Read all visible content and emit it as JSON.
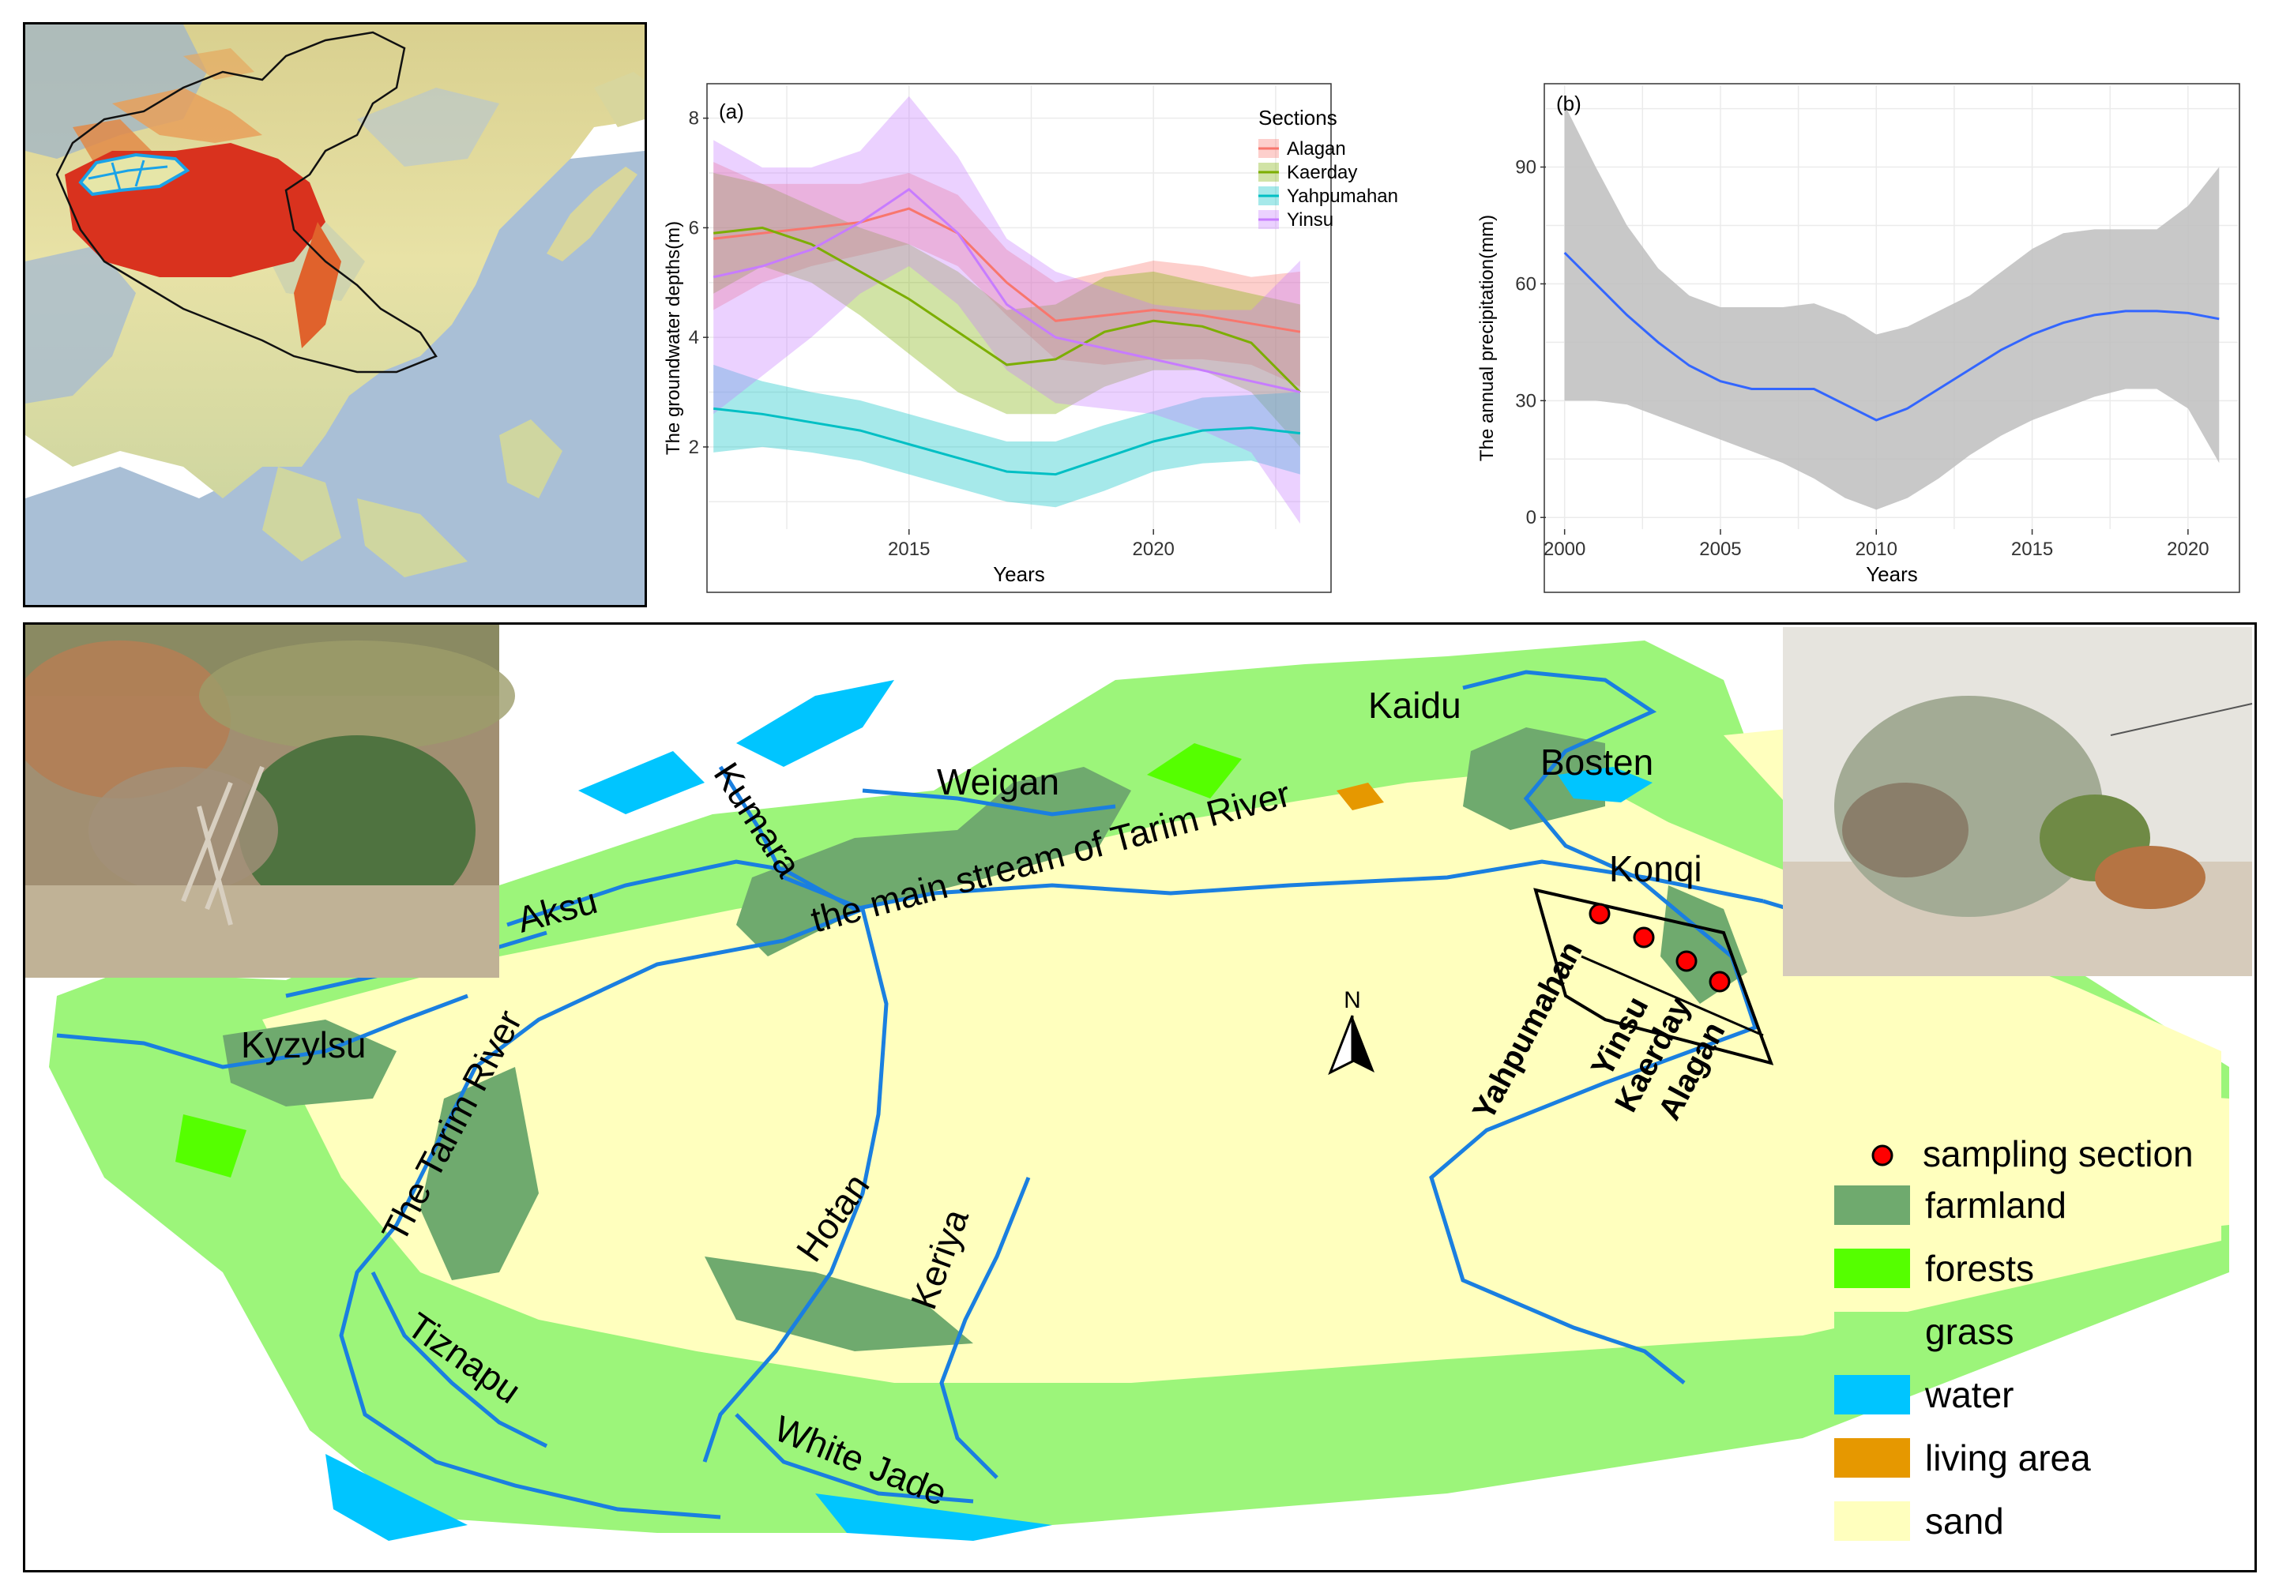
{
  "inset_map": {
    "name": "East Asia elevation inset map"
  },
  "chart_data": [
    {
      "type": "line",
      "panel_label": "(a)",
      "title": "",
      "xlabel": "Years",
      "ylabel": "The groundwater depths(m)",
      "xlim": [
        2010.9,
        2023.6
      ],
      "ylim": [
        0.5,
        8.6
      ],
      "xticks": [
        2015,
        2020
      ],
      "yticks": [
        2,
        4,
        6,
        8
      ],
      "grid": true,
      "legend": {
        "title": "Sections",
        "placement": "top-right"
      },
      "series": [
        {
          "name": "Alagan",
          "color": "#F8766D",
          "x": [
            2011,
            2012,
            2013,
            2014,
            2015,
            2016,
            2017,
            2018,
            2019,
            2020,
            2021,
            2022,
            2023
          ],
          "mean": [
            5.8,
            5.9,
            6.0,
            6.1,
            6.35,
            5.9,
            5.0,
            4.3,
            4.4,
            4.5,
            4.4,
            4.25,
            4.1
          ],
          "lower": [
            4.5,
            5.0,
            5.3,
            5.5,
            5.7,
            5.3,
            4.4,
            3.6,
            3.5,
            3.6,
            3.6,
            3.5,
            3.1
          ],
          "upper": [
            7.2,
            6.8,
            6.8,
            6.8,
            7.0,
            6.6,
            5.6,
            5.0,
            5.2,
            5.4,
            5.3,
            5.1,
            5.2
          ]
        },
        {
          "name": "Kaerday",
          "color": "#7CAE00",
          "x": [
            2011,
            2012,
            2013,
            2014,
            2015,
            2016,
            2017,
            2018,
            2019,
            2020,
            2021,
            2022,
            2023
          ],
          "mean": [
            5.9,
            6.0,
            5.7,
            5.2,
            4.7,
            4.1,
            3.5,
            3.6,
            4.1,
            4.3,
            4.2,
            3.9,
            3.0
          ],
          "lower": [
            4.8,
            5.3,
            5.0,
            4.4,
            3.7,
            3.0,
            2.6,
            2.6,
            3.1,
            3.4,
            3.4,
            3.0,
            2.0
          ],
          "upper": [
            7.0,
            6.8,
            6.4,
            6.0,
            5.7,
            5.2,
            4.5,
            4.6,
            5.1,
            5.2,
            5.0,
            4.8,
            4.6
          ]
        },
        {
          "name": "Yahpumahan",
          "color": "#00BFC4",
          "x": [
            2011,
            2012,
            2013,
            2014,
            2015,
            2016,
            2017,
            2018,
            2019,
            2020,
            2021,
            2022,
            2023
          ],
          "mean": [
            2.7,
            2.6,
            2.45,
            2.3,
            2.05,
            1.8,
            1.55,
            1.5,
            1.8,
            2.1,
            2.3,
            2.35,
            2.25
          ],
          "lower": [
            1.9,
            2.0,
            1.9,
            1.75,
            1.5,
            1.25,
            1.0,
            0.9,
            1.2,
            1.55,
            1.7,
            1.75,
            1.5
          ],
          "upper": [
            3.5,
            3.2,
            3.0,
            2.85,
            2.6,
            2.35,
            2.1,
            2.1,
            2.4,
            2.65,
            2.9,
            2.95,
            3.0
          ]
        },
        {
          "name": "Yinsu",
          "color": "#C77CFF",
          "x": [
            2011,
            2012,
            2013,
            2014,
            2015,
            2016,
            2017,
            2018,
            2019,
            2020,
            2021,
            2022,
            2023
          ],
          "mean": [
            5.1,
            5.3,
            5.6,
            6.1,
            6.7,
            5.9,
            4.6,
            4.0,
            3.8,
            3.6,
            3.4,
            3.2,
            3.0
          ],
          "lower": [
            2.6,
            3.3,
            4.0,
            4.8,
            5.3,
            4.6,
            3.4,
            2.8,
            2.7,
            2.6,
            2.3,
            1.9,
            0.6
          ],
          "upper": [
            7.6,
            7.1,
            7.1,
            7.4,
            8.4,
            7.3,
            5.8,
            5.2,
            4.9,
            4.6,
            4.5,
            4.5,
            5.4
          ]
        }
      ]
    },
    {
      "type": "line",
      "panel_label": "(b)",
      "title": "",
      "xlabel": "Years",
      "ylabel": "The annual precipitation(mm)",
      "xlim": [
        1999.4,
        2021.6
      ],
      "ylim": [
        -3,
        111
      ],
      "xticks": [
        2000,
        2005,
        2010,
        2015,
        2020
      ],
      "yticks": [
        0,
        30,
        60,
        90
      ],
      "grid": true,
      "series": [
        {
          "name": "",
          "color": "#3366FF",
          "band_color": "#BEBEBE",
          "x": [
            2000,
            2001,
            2002,
            2003,
            2004,
            2005,
            2006,
            2007,
            2008,
            2009,
            2010,
            2011,
            2012,
            2013,
            2014,
            2015,
            2016,
            2017,
            2018,
            2019,
            2020,
            2021
          ],
          "mean": [
            68,
            60,
            52,
            45,
            39,
            35,
            33,
            33,
            33,
            29,
            25,
            28,
            33,
            38,
            43,
            47,
            50,
            52,
            53,
            53,
            52.5,
            51
          ],
          "lower": [
            30,
            30,
            29,
            26,
            23,
            20,
            17,
            14,
            10,
            5,
            2,
            5,
            10,
            16,
            21,
            25,
            28,
            31,
            33,
            33,
            28,
            14
          ],
          "upper": [
            106,
            90,
            75,
            64,
            57,
            54,
            54,
            54,
            55,
            52,
            47,
            49,
            53,
            57,
            63,
            69,
            73,
            74,
            74,
            74,
            80,
            90
          ]
        }
      ]
    }
  ],
  "main_map": {
    "rivers": [
      "Kaidu",
      "Bosten",
      "Weigan",
      "Kumara",
      "Aksu",
      "the main stream of Tarim River",
      "Konqi",
      "Kyzylsu",
      "The Tarim River",
      "Hotan",
      "Keriya",
      "Tiznapu",
      "White Jade"
    ],
    "sections": [
      "Yahpumahan",
      "Yinsu",
      "Kaerday",
      "Alagan"
    ],
    "north_label": "N",
    "legend": [
      {
        "label": "sampling section",
        "color": "#FF0000",
        "kind": "point"
      },
      {
        "label": "farmland",
        "color": "#6FAA6E",
        "kind": "patch"
      },
      {
        "label": "forests",
        "color": "#55FF00",
        "kind": "patch"
      },
      {
        "label": "grass",
        "color": "#9CF57A",
        "kind": "patch"
      },
      {
        "label": "water",
        "color": "#00C5FF",
        "kind": "patch"
      },
      {
        "label": "living area",
        "color": "#E69800",
        "kind": "patch"
      },
      {
        "label": "sand",
        "color": "#FFFFBE",
        "kind": "patch"
      }
    ]
  }
}
